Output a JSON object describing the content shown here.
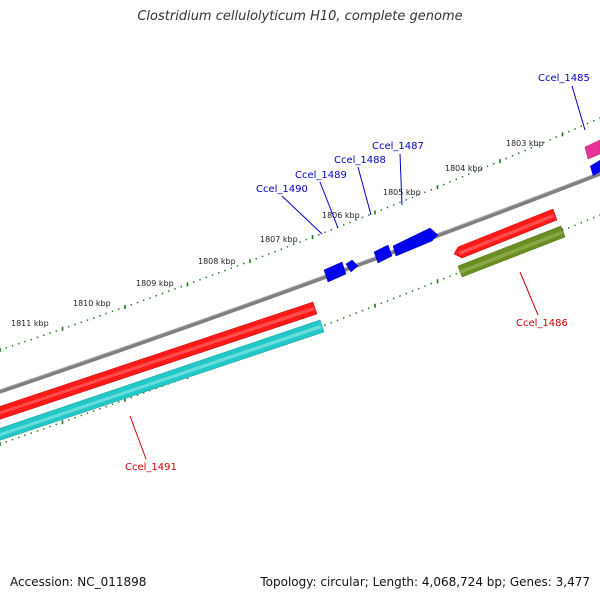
{
  "title": "Clostridium cellulolyticum H10, complete genome",
  "footer": {
    "accession": "Accession: NC_011898",
    "summary": "Topology: circular; Length: 4,068,724 bp; Genes: 3,477"
  },
  "colors": {
    "backbone": "#808080",
    "tick": "#1a7a1a",
    "label_blue": "#0000cc",
    "label_red": "#cc0000"
  },
  "scale": {
    "labels": [
      "1803 kbp",
      "1804 kbp",
      "1805 kbp",
      "1806 kbp",
      "1807 kbp",
      "1808 kbp",
      "1809 kbp",
      "1810 kbp",
      "1811 kbp"
    ]
  },
  "genes": [
    {
      "id": "Ccel_1485",
      "color": "#e8349a"
    },
    {
      "id": "Ccel_1486",
      "color": "#6b8e23"
    },
    {
      "id": "Ccel_1487",
      "color": "#0000ee"
    },
    {
      "id": "Ccel_1488",
      "color": "#0000ee"
    },
    {
      "id": "Ccel_1489",
      "color": "#0000ee"
    },
    {
      "id": "Ccel_1490",
      "color": "#0000ee"
    },
    {
      "id": "Ccel_1491",
      "color": "#22c8c8"
    }
  ]
}
